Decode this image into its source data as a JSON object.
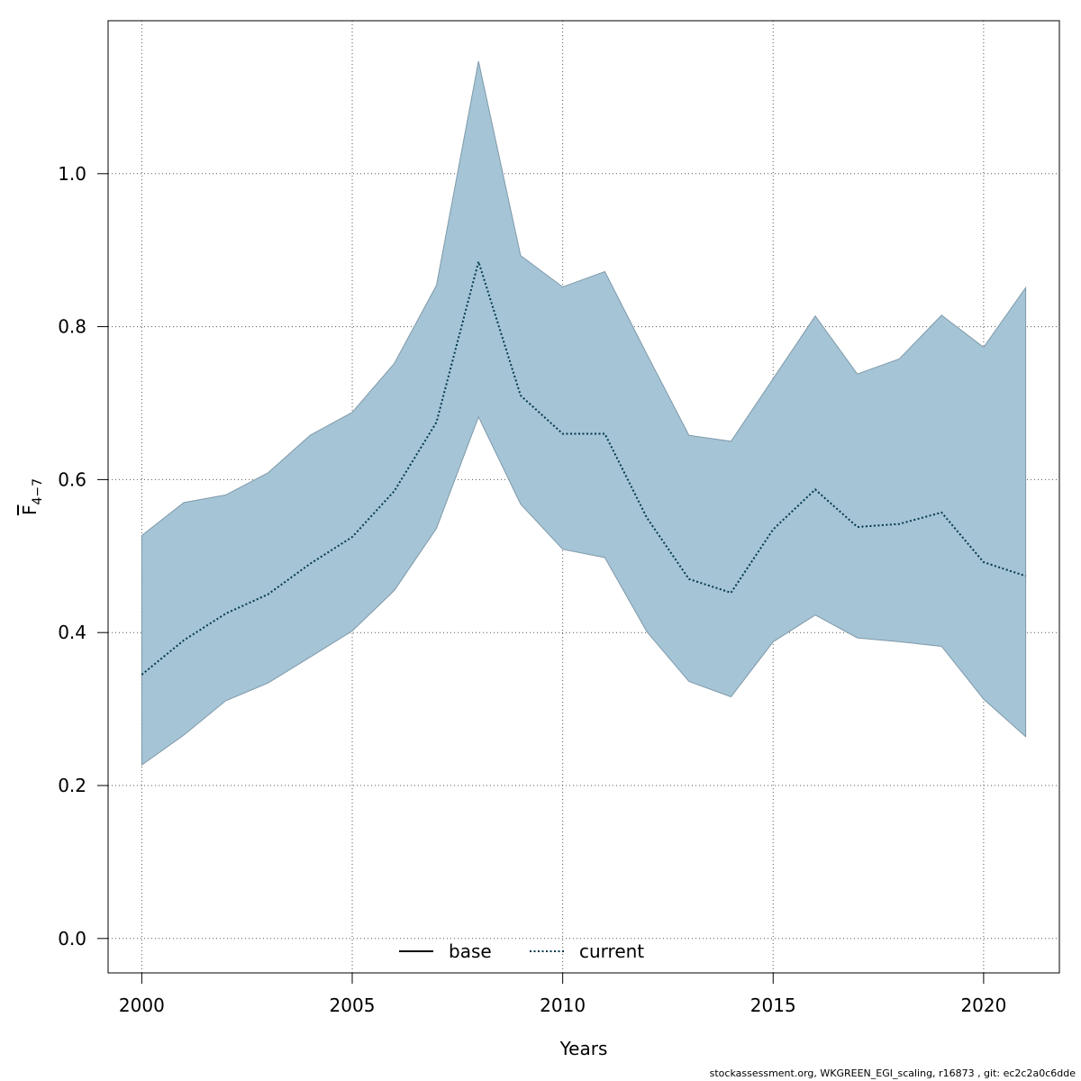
{
  "chart_data": {
    "type": "line",
    "xlabel": "Years",
    "ylabel": {
      "base": "F",
      "subscript": "4−7"
    },
    "xlim": [
      1999.2,
      2021.8
    ],
    "ylim": [
      -0.045,
      1.2
    ],
    "x_ticks": [
      2000,
      2005,
      2010,
      2015,
      2020
    ],
    "y_ticks": [
      0.0,
      0.2,
      0.4,
      0.6,
      0.8,
      1.0
    ],
    "y_tick_labels": [
      "0.0",
      "0.2",
      "0.4",
      "0.6",
      "0.8",
      "1.0"
    ],
    "grid": true,
    "legend_position": "bottom-center",
    "legend": [
      {
        "name": "base",
        "style": "solid",
        "color": "#000000"
      },
      {
        "name": "current",
        "style": "dotted",
        "color": "#00394d"
      }
    ],
    "years": [
      2000,
      2001,
      2002,
      2003,
      2004,
      2005,
      2006,
      2007,
      2008,
      2009,
      2010,
      2011,
      2012,
      2013,
      2014,
      2015,
      2016,
      2017,
      2018,
      2019,
      2020,
      2021
    ],
    "series": [
      {
        "name": "current",
        "values": [
          0.345,
          0.39,
          0.425,
          0.45,
          0.49,
          0.525,
          0.585,
          0.675,
          0.885,
          0.71,
          0.66,
          0.66,
          0.55,
          0.47,
          0.452,
          0.535,
          0.587,
          0.538,
          0.542,
          0.557,
          0.492,
          0.474
        ]
      }
    ],
    "band": {
      "upper": [
        0.527,
        0.57,
        0.58,
        0.609,
        0.658,
        0.688,
        0.752,
        0.854,
        1.147,
        0.893,
        0.852,
        0.872,
        0.764,
        0.658,
        0.65,
        0.732,
        0.814,
        0.738,
        0.758,
        0.815,
        0.773,
        0.851
      ],
      "lower": [
        0.227,
        0.266,
        0.311,
        0.334,
        0.368,
        0.402,
        0.455,
        0.536,
        0.682,
        0.568,
        0.509,
        0.498,
        0.401,
        0.336,
        0.316,
        0.388,
        0.423,
        0.393,
        0.388,
        0.382,
        0.313,
        0.264
      ],
      "color": "#a5c4d5",
      "edge_color": "#7f9aaa"
    }
  },
  "footer": "stockassessment.org, WKGREEN_EGI_scaling, r16873 , git: ec2c2a0c6dde"
}
